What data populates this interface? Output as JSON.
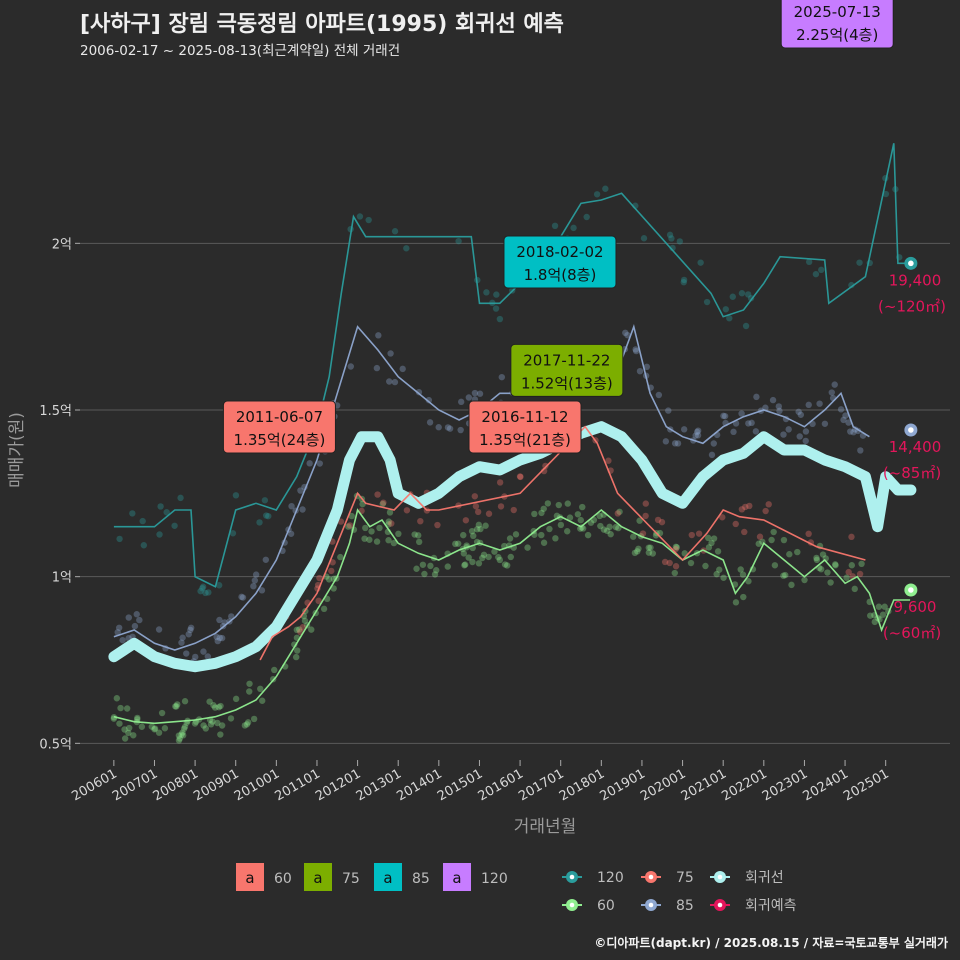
{
  "header": {
    "title": "[사하구] 장림 극동정림 아파트(1995) 회귀선 예측",
    "subtitle": "2006-02-17 ~ 2025-08-13(최근계약일) 전체 거래건"
  },
  "footer": {
    "credit": "©디아파트(dapt.kr) / 2025.08.15 / 자료=국토교통부 실거래가"
  },
  "colors": {
    "s60": "#90ee90",
    "s75": "#f8766d",
    "s85": "#8fa8d1",
    "s120": "#2a9d9d",
    "regression": "#aef0ee",
    "prediction": "#e3165b",
    "key60": "#f8766d",
    "key75": "#7cae00",
    "key85": "#00bfc4",
    "key120": "#c77cff"
  },
  "chart_data": {
    "type": "line",
    "xlabel": "거래년월",
    "ylabel": "매매가(원)",
    "x_range": [
      "2005-03",
      "2026-08"
    ],
    "ylim": [
      0.45,
      2.55
    ],
    "y_ticks": [
      {
        "value": 0.5,
        "label": "0.5억"
      },
      {
        "value": 1.0,
        "label": "1억"
      },
      {
        "value": 1.5,
        "label": "1.5억"
      },
      {
        "value": 2.0,
        "label": "2억"
      }
    ],
    "x_ticks": [
      "200601",
      "200701",
      "200801",
      "200901",
      "201001",
      "201101",
      "201201",
      "201301",
      "201401",
      "201501",
      "201601",
      "201701",
      "201801",
      "201901",
      "202001",
      "202101",
      "202201",
      "202301",
      "202401",
      "202501"
    ],
    "series": [
      {
        "name": "60",
        "color_key": "s60",
        "points": [
          [
            2006.0,
            0.58
          ],
          [
            2006.5,
            0.565
          ],
          [
            2007.0,
            0.56
          ],
          [
            2007.5,
            0.565
          ],
          [
            2008.0,
            0.57
          ],
          [
            2008.5,
            0.58
          ],
          [
            2009.0,
            0.6
          ],
          [
            2009.5,
            0.63
          ],
          [
            2010.0,
            0.7
          ],
          [
            2010.5,
            0.8
          ],
          [
            2011.0,
            0.9
          ],
          [
            2011.5,
            1.0
          ],
          [
            2011.8,
            1.1
          ],
          [
            2012.0,
            1.2
          ],
          [
            2012.3,
            1.15
          ],
          [
            2012.6,
            1.17
          ],
          [
            2013.0,
            1.1
          ],
          [
            2013.5,
            1.07
          ],
          [
            2014.0,
            1.05
          ],
          [
            2014.5,
            1.08
          ],
          [
            2015.0,
            1.1
          ],
          [
            2015.5,
            1.08
          ],
          [
            2016.0,
            1.1
          ],
          [
            2016.5,
            1.15
          ],
          [
            2017.0,
            1.18
          ],
          [
            2017.5,
            1.15
          ],
          [
            2018.0,
            1.2
          ],
          [
            2018.5,
            1.15
          ],
          [
            2019.0,
            1.12
          ],
          [
            2019.5,
            1.1
          ],
          [
            2020.0,
            1.05
          ],
          [
            2020.5,
            1.08
          ],
          [
            2021.0,
            1.05
          ],
          [
            2021.3,
            0.95
          ],
          [
            2021.6,
            1.0
          ],
          [
            2022.0,
            1.1
          ],
          [
            2022.5,
            1.05
          ],
          [
            2023.0,
            1.0
          ],
          [
            2023.5,
            1.05
          ],
          [
            2024.0,
            0.98
          ],
          [
            2024.3,
            1.0
          ],
          [
            2024.6,
            0.95
          ],
          [
            2024.9,
            0.84
          ],
          [
            2025.2,
            0.93
          ],
          [
            2025.6,
            0.93
          ]
        ],
        "end_point": [
          2025.62,
          0.96
        ],
        "end_label_price": "9,600",
        "end_label_area": "(~60㎡)"
      },
      {
        "name": "75",
        "color_key": "s75",
        "points": [
          [
            2009.6,
            0.75
          ],
          [
            2009.9,
            0.82
          ],
          [
            2010.3,
            0.85
          ],
          [
            2010.6,
            0.88
          ],
          [
            2011.0,
            0.95
          ],
          [
            2011.5,
            1.1
          ],
          [
            2012.0,
            1.25
          ],
          [
            2012.2,
            1.22
          ],
          [
            2012.9,
            1.2
          ],
          [
            2013.3,
            1.25
          ],
          [
            2013.7,
            1.2
          ],
          [
            2014.0,
            1.2
          ],
          [
            2016.0,
            1.25
          ],
          [
            2017.6,
            1.45
          ],
          [
            2017.9,
            1.4
          ],
          [
            2018.4,
            1.25
          ],
          [
            2020.0,
            1.05
          ],
          [
            2020.6,
            1.13
          ],
          [
            2021.0,
            1.2
          ],
          [
            2021.4,
            1.18
          ],
          [
            2022.0,
            1.17
          ],
          [
            2023.3,
            1.09
          ],
          [
            2024.5,
            1.05
          ]
        ],
        "end_point": null
      },
      {
        "name": "85",
        "color_key": "s85",
        "points": [
          [
            2006.0,
            0.82
          ],
          [
            2006.5,
            0.84
          ],
          [
            2007.0,
            0.8
          ],
          [
            2007.5,
            0.78
          ],
          [
            2008.0,
            0.8
          ],
          [
            2008.5,
            0.83
          ],
          [
            2009.0,
            0.88
          ],
          [
            2009.5,
            0.95
          ],
          [
            2010.0,
            1.05
          ],
          [
            2010.5,
            1.2
          ],
          [
            2011.0,
            1.35
          ],
          [
            2011.5,
            1.55
          ],
          [
            2012.0,
            1.75
          ],
          [
            2012.5,
            1.68
          ],
          [
            2013.0,
            1.6
          ],
          [
            2013.5,
            1.55
          ],
          [
            2014.0,
            1.5
          ],
          [
            2014.5,
            1.47
          ],
          [
            2015.0,
            1.5
          ],
          [
            2015.5,
            1.55
          ],
          [
            2016.0,
            1.55
          ],
          [
            2016.5,
            1.6
          ],
          [
            2017.0,
            1.62
          ],
          [
            2017.5,
            1.6
          ],
          [
            2018.0,
            1.62
          ],
          [
            2018.5,
            1.65
          ],
          [
            2018.8,
            1.75
          ],
          [
            2019.2,
            1.55
          ],
          [
            2019.6,
            1.45
          ],
          [
            2020.0,
            1.42
          ],
          [
            2020.5,
            1.4
          ],
          [
            2021.0,
            1.45
          ],
          [
            2021.5,
            1.48
          ],
          [
            2022.0,
            1.5
          ],
          [
            2022.5,
            1.48
          ],
          [
            2023.0,
            1.45
          ],
          [
            2023.5,
            1.5
          ],
          [
            2023.9,
            1.55
          ],
          [
            2024.2,
            1.45
          ],
          [
            2024.6,
            1.42
          ]
        ],
        "end_point": [
          2025.62,
          1.44
        ],
        "end_label_price": "14,400",
        "end_label_area": "(~85㎡)"
      },
      {
        "name": "120",
        "color_key": "s120",
        "points": [
          [
            2006.0,
            1.15
          ],
          [
            2007.0,
            1.15
          ],
          [
            2007.5,
            1.2
          ],
          [
            2007.9,
            1.2
          ],
          [
            2008.0,
            1.0
          ],
          [
            2008.5,
            0.97
          ],
          [
            2009.0,
            1.2
          ],
          [
            2009.5,
            1.22
          ],
          [
            2010.0,
            1.2
          ],
          [
            2010.5,
            1.3
          ],
          [
            2011.0,
            1.45
          ],
          [
            2011.3,
            1.6
          ],
          [
            2011.6,
            1.85
          ],
          [
            2011.9,
            2.08
          ],
          [
            2012.2,
            2.02
          ],
          [
            2012.8,
            2.02
          ],
          [
            2014.8,
            2.02
          ],
          [
            2015.0,
            1.82
          ],
          [
            2015.5,
            1.82
          ],
          [
            2016.0,
            1.88
          ],
          [
            2016.5,
            1.95
          ],
          [
            2017.0,
            2.02
          ],
          [
            2017.5,
            2.12
          ],
          [
            2018.0,
            2.13
          ],
          [
            2018.5,
            2.15
          ],
          [
            2020.7,
            1.85
          ],
          [
            2021.0,
            1.78
          ],
          [
            2021.5,
            1.8
          ],
          [
            2022.0,
            1.88
          ],
          [
            2022.4,
            1.96
          ],
          [
            2023.5,
            1.95
          ],
          [
            2023.6,
            1.82
          ],
          [
            2024.5,
            1.9
          ],
          [
            2025.2,
            2.3
          ],
          [
            2025.3,
            1.94
          ],
          [
            2025.62,
            1.94
          ]
        ],
        "end_point": [
          2025.62,
          1.94
        ],
        "end_label_price": "19,400",
        "end_label_area": "(~120㎡)"
      },
      {
        "name": "회귀선",
        "color_key": "regression",
        "points": [
          [
            2006.0,
            0.76
          ],
          [
            2006.5,
            0.8
          ],
          [
            2007.0,
            0.76
          ],
          [
            2007.5,
            0.74
          ],
          [
            2008.0,
            0.73
          ],
          [
            2008.5,
            0.74
          ],
          [
            2009.0,
            0.76
          ],
          [
            2009.5,
            0.79
          ],
          [
            2010.0,
            0.85
          ],
          [
            2010.5,
            0.95
          ],
          [
            2011.0,
            1.05
          ],
          [
            2011.5,
            1.2
          ],
          [
            2011.8,
            1.35
          ],
          [
            2012.1,
            1.42
          ],
          [
            2012.5,
            1.42
          ],
          [
            2012.8,
            1.35
          ],
          [
            2013.0,
            1.25
          ],
          [
            2013.5,
            1.22
          ],
          [
            2014.0,
            1.25
          ],
          [
            2014.5,
            1.3
          ],
          [
            2015.0,
            1.33
          ],
          [
            2015.5,
            1.32
          ],
          [
            2016.0,
            1.35
          ],
          [
            2016.5,
            1.37
          ],
          [
            2017.0,
            1.4
          ],
          [
            2017.5,
            1.43
          ],
          [
            2018.0,
            1.45
          ],
          [
            2018.5,
            1.42
          ],
          [
            2019.0,
            1.35
          ],
          [
            2019.5,
            1.25
          ],
          [
            2020.0,
            1.22
          ],
          [
            2020.5,
            1.3
          ],
          [
            2021.0,
            1.35
          ],
          [
            2021.5,
            1.37
          ],
          [
            2022.0,
            1.42
          ],
          [
            2022.5,
            1.38
          ],
          [
            2023.0,
            1.38
          ],
          [
            2023.5,
            1.35
          ],
          [
            2024.0,
            1.33
          ],
          [
            2024.5,
            1.3
          ],
          [
            2024.8,
            1.15
          ],
          [
            2025.0,
            1.3
          ],
          [
            2025.3,
            1.26
          ],
          [
            2025.62,
            1.26
          ]
        ]
      }
    ],
    "callouts": [
      {
        "date": "2011-06-07",
        "text": "1.35억(24층)",
        "key": "key60",
        "anchor": [
          2011.43,
          1.35
        ]
      },
      {
        "date": "2016-11-12",
        "text": "1.35억(21층)",
        "key": "key60",
        "anchor": [
          2016.86,
          1.35
        ]
      },
      {
        "date": "2017-11-22",
        "text": "1.52억(13층)",
        "key": "key75",
        "anchor": [
          2017.89,
          1.52
        ]
      },
      {
        "date": "2018-02-02",
        "text": "1.8억(8층)",
        "key": "key85",
        "anchor": [
          2018.09,
          1.8
        ]
      },
      {
        "date": "2025-07-13",
        "text": "2.25억(4층)",
        "key": "key120",
        "anchor": [
          2025.53,
          2.25
        ]
      }
    ],
    "legend_keys": [
      {
        "label": "60",
        "color_key": "key60",
        "glyph": "a"
      },
      {
        "label": "75",
        "color_key": "key75",
        "glyph": "a"
      },
      {
        "label": "85",
        "color_key": "key85",
        "glyph": "a"
      },
      {
        "label": "120",
        "color_key": "key120",
        "glyph": "a"
      }
    ],
    "legend_lines": [
      {
        "label": "120",
        "color_key": "s120"
      },
      {
        "label": "60",
        "color_key": "s60"
      },
      {
        "label": "75",
        "color_key": "s75"
      },
      {
        "label": "85",
        "color_key": "s85"
      },
      {
        "label": "회귀선",
        "color_key": "regression"
      },
      {
        "label": "회귀예측",
        "color_key": "prediction"
      }
    ],
    "legend_position": "bottom"
  }
}
